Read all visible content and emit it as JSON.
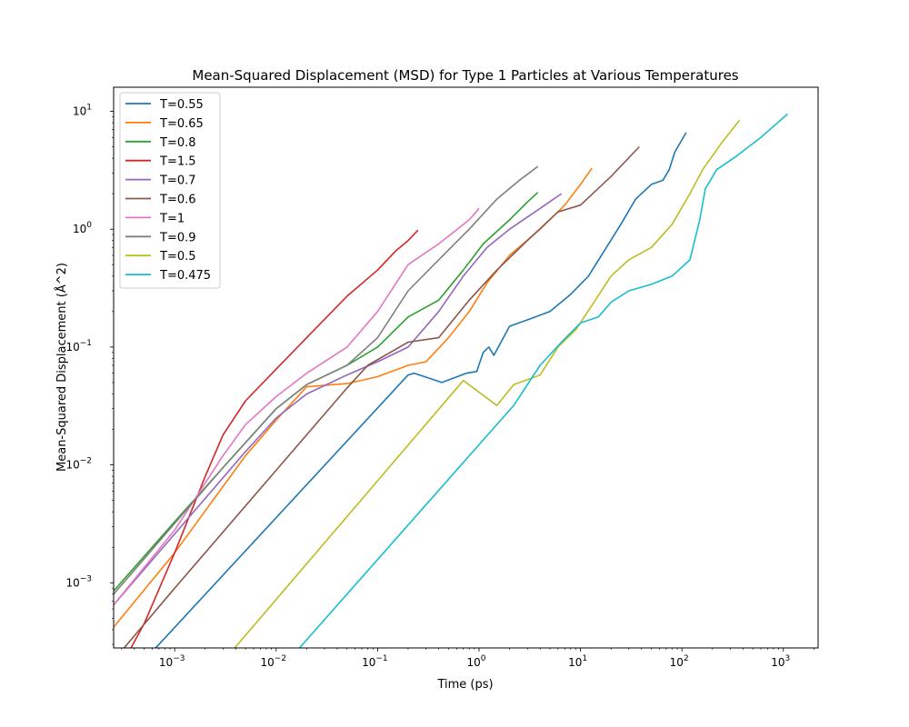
{
  "chart_data": {
    "type": "line",
    "title": "Mean-Squared Displacement (MSD) for Type 1 Particles at Various Temperatures",
    "xlabel": "Time (ps)",
    "ylabel": "Mean-Squared Displacement (Å^2)",
    "x_scale": "log",
    "y_scale": "log",
    "xlim": [
      0.00025,
      2200
    ],
    "ylim": [
      0.00028,
      16
    ],
    "x_ticks": [
      {
        "value": 0.001,
        "label": "10",
        "exp": "−3"
      },
      {
        "value": 0.01,
        "label": "10",
        "exp": "−2"
      },
      {
        "value": 0.1,
        "label": "10",
        "exp": "−1"
      },
      {
        "value": 1,
        "label": "10",
        "exp": "0"
      },
      {
        "value": 10,
        "label": "10",
        "exp": "1"
      },
      {
        "value": 100,
        "label": "10",
        "exp": "2"
      },
      {
        "value": 1000,
        "label": "10",
        "exp": "3"
      }
    ],
    "y_ticks": [
      {
        "value": 0.001,
        "label": "10",
        "exp": "−3"
      },
      {
        "value": 0.01,
        "label": "10",
        "exp": "−2"
      },
      {
        "value": 0.1,
        "label": "10",
        "exp": "−1"
      },
      {
        "value": 1,
        "label": "10",
        "exp": "0"
      },
      {
        "value": 10,
        "label": "10",
        "exp": "1"
      }
    ],
    "grid": false,
    "legend_position": "top-left",
    "series": [
      {
        "name": "T=0.55",
        "color": "#1f77b4",
        "x": [
          0.00025,
          0.0007,
          0.2,
          0.23,
          0.43,
          0.75,
          0.95,
          1.1,
          1.25,
          1.4,
          2,
          3,
          5,
          8,
          12,
          18,
          25,
          35,
          50,
          65,
          75,
          85,
          110
        ],
        "y": [
          0.00012,
          0.0003,
          0.058,
          0.06,
          0.05,
          0.06,
          0.062,
          0.09,
          0.1,
          0.085,
          0.15,
          0.17,
          0.2,
          0.28,
          0.4,
          0.7,
          1.1,
          1.8,
          2.4,
          2.6,
          3.2,
          4.5,
          6.6
        ]
      },
      {
        "name": "T=0.65",
        "color": "#ff7f0e",
        "x": [
          0.00025,
          0.001,
          0.005,
          0.01,
          0.02,
          0.05,
          0.1,
          0.2,
          0.3,
          0.5,
          0.8,
          1.2,
          2,
          4,
          7,
          10,
          13
        ],
        "y": [
          0.00042,
          0.0018,
          0.012,
          0.024,
          0.046,
          0.049,
          0.056,
          0.07,
          0.075,
          0.12,
          0.2,
          0.35,
          0.6,
          1.0,
          1.6,
          2.4,
          3.3
        ]
      },
      {
        "name": "T=0.8",
        "color": "#2ca02c",
        "x": [
          0.00025,
          0.001,
          0.003,
          0.01,
          0.02,
          0.05,
          0.1,
          0.2,
          0.4,
          0.7,
          1.1,
          2,
          3,
          3.8
        ],
        "y": [
          0.00085,
          0.0033,
          0.0095,
          0.03,
          0.048,
          0.07,
          0.1,
          0.18,
          0.25,
          0.45,
          0.75,
          1.2,
          1.7,
          2.05
        ]
      },
      {
        "name": "T=1.5",
        "color": "#d62728",
        "x": [
          0.00025,
          0.0005,
          0.001,
          0.002,
          0.003,
          0.005,
          0.01,
          0.02,
          0.05,
          0.1,
          0.15,
          0.2,
          0.25
        ],
        "y": [
          0.00015,
          0.00045,
          0.0018,
          0.008,
          0.018,
          0.035,
          0.065,
          0.12,
          0.27,
          0.45,
          0.65,
          0.8,
          0.98
        ]
      },
      {
        "name": "T=0.7",
        "color": "#9467bd",
        "x": [
          0.00025,
          0.001,
          0.005,
          0.01,
          0.02,
          0.05,
          0.1,
          0.2,
          0.4,
          0.7,
          1.2,
          2,
          4,
          6.5
        ],
        "y": [
          0.00065,
          0.0026,
          0.013,
          0.025,
          0.04,
          0.058,
          0.075,
          0.1,
          0.2,
          0.4,
          0.7,
          1.0,
          1.5,
          2.0
        ]
      },
      {
        "name": "T=0.6",
        "color": "#8c564b",
        "x": [
          0.00025,
          0.001,
          0.01,
          0.05,
          0.08,
          0.2,
          0.4,
          0.8,
          1.5,
          3,
          6,
          10,
          20,
          38
        ],
        "y": [
          0.00022,
          0.0009,
          0.009,
          0.045,
          0.07,
          0.11,
          0.12,
          0.25,
          0.45,
          0.8,
          1.4,
          1.6,
          2.8,
          5.0
        ]
      },
      {
        "name": "T=1",
        "color": "#e377c2",
        "x": [
          0.00025,
          0.001,
          0.003,
          0.005,
          0.01,
          0.02,
          0.05,
          0.1,
          0.2,
          0.4,
          0.8,
          1.0
        ],
        "y": [
          0.00065,
          0.0028,
          0.012,
          0.022,
          0.038,
          0.06,
          0.1,
          0.2,
          0.5,
          0.75,
          1.2,
          1.5
        ]
      },
      {
        "name": "T=0.9",
        "color": "#7f7f7f",
        "x": [
          0.00025,
          0.001,
          0.003,
          0.01,
          0.02,
          0.05,
          0.1,
          0.2,
          0.4,
          0.8,
          1.5,
          2.5,
          3.8
        ],
        "y": [
          0.0008,
          0.0032,
          0.0095,
          0.03,
          0.048,
          0.07,
          0.12,
          0.3,
          0.55,
          1.0,
          1.8,
          2.6,
          3.4
        ]
      },
      {
        "name": "T=0.5",
        "color": "#bcbd22",
        "x": [
          0.0039,
          0.7,
          1.5,
          2.2,
          4,
          6,
          9,
          14,
          20,
          30,
          50,
          80,
          120,
          160,
          250,
          370
        ],
        "y": [
          0.00028,
          0.052,
          0.032,
          0.048,
          0.058,
          0.1,
          0.14,
          0.25,
          0.4,
          0.55,
          0.7,
          1.1,
          2.0,
          3.2,
          5.5,
          8.4
        ]
      },
      {
        "name": "T=0.475",
        "color": "#17becf",
        "x": [
          0.017,
          2.2,
          4,
          6.5,
          10,
          15,
          20,
          30,
          50,
          80,
          120,
          150,
          170,
          220,
          350,
          600,
          1100
        ],
        "y": [
          0.00028,
          0.032,
          0.07,
          0.11,
          0.16,
          0.18,
          0.24,
          0.3,
          0.34,
          0.4,
          0.55,
          1.2,
          2.2,
          3.2,
          4.2,
          6.0,
          9.5
        ]
      }
    ]
  }
}
